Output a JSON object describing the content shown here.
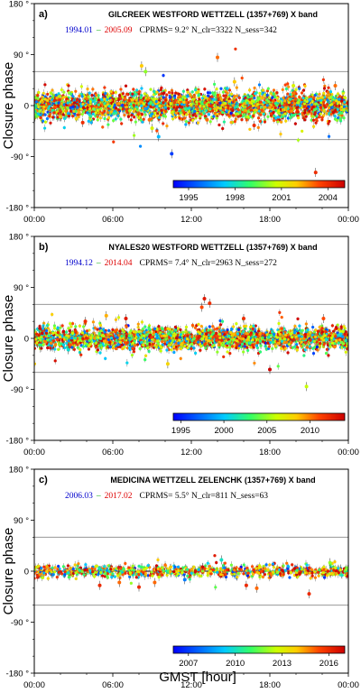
{
  "xlabel": "GMST [hour]",
  "chart_data": [
    {
      "type": "scatter",
      "panel_label": "a)",
      "title": "GILCREEK WESTFORD WETTZELL (1357+769) X band",
      "date_start": "1994.01",
      "dash": "–",
      "date_end": "2005.09",
      "stats": "CPRMS=  9.2°    N_clr=3322    N_sess=342",
      "ylabel": "Closure phase",
      "xlim": [
        0,
        24
      ],
      "ylim": [
        -180,
        180
      ],
      "x_ticks": [
        "00:00",
        "06:00",
        "12:00",
        "18:00",
        "00:00"
      ],
      "y_ticks": [
        "180 °",
        "90 °",
        "0",
        "-90 °",
        "-180 °"
      ],
      "reference_lines": [
        60,
        -60
      ],
      "colorbar": {
        "range": [
          1994.01,
          2005.09
        ],
        "ticks": [
          1995,
          1998,
          2001,
          2004
        ]
      },
      "noise_spread": 12,
      "n_points": 2600,
      "outliers": [
        [
          8.2,
          70,
          2002
        ],
        [
          8.5,
          60,
          2000
        ],
        [
          8.8,
          -25,
          2003
        ],
        [
          9.0,
          -40,
          2001
        ],
        [
          9.5,
          -55,
          1997
        ],
        [
          10.5,
          -85,
          1995
        ],
        [
          14.0,
          85,
          2003
        ],
        [
          15.3,
          42,
          2002
        ],
        [
          16.8,
          -35,
          2004
        ],
        [
          21.5,
          -118,
          2004
        ],
        [
          23.0,
          35,
          2003
        ],
        [
          19.8,
          35,
          2001
        ],
        [
          3.7,
          -30,
          2004
        ],
        [
          2.0,
          -20,
          2002
        ],
        [
          13.2,
          -25,
          2003
        ]
      ]
    },
    {
      "type": "scatter",
      "panel_label": "b)",
      "title": "NYALES20 WESTFORD WETTZELL (1357+769) X band",
      "date_start": "1994.12",
      "dash": "–",
      "date_end": "2014.04",
      "stats": "CPRMS=  7.4°    N_clr=2963    N_sess=272",
      "ylabel": "Closure phase",
      "xlim": [
        0,
        24
      ],
      "ylim": [
        -180,
        180
      ],
      "x_ticks": [
        "00:00",
        "06:00",
        "12:00",
        "18:00",
        "00:00"
      ],
      "y_ticks": [
        "180 °",
        "90 °",
        "0",
        "-90 °",
        "-180 °"
      ],
      "reference_lines": [
        60,
        -60
      ],
      "colorbar": {
        "range": [
          1994.12,
          2014.04
        ],
        "ticks": [
          1995,
          2000,
          2005,
          2010
        ]
      },
      "noise_spread": 9,
      "n_points": 2400,
      "outliers": [
        [
          13.0,
          70,
          2013
        ],
        [
          13.4,
          62,
          2012
        ],
        [
          12.8,
          55,
          2011
        ],
        [
          5.5,
          40,
          2009
        ],
        [
          7.0,
          35,
          2013
        ],
        [
          18.0,
          -55,
          2014
        ],
        [
          20.8,
          -85,
          2006
        ],
        [
          10.2,
          -45,
          2008
        ],
        [
          3.9,
          30,
          2012
        ],
        [
          22.1,
          35,
          2011
        ],
        [
          16.0,
          35,
          2012
        ],
        [
          2.6,
          -20,
          2001
        ]
      ]
    },
    {
      "type": "scatter",
      "panel_label": "c)",
      "title": "MEDICINA WETTZELL ZELENCHK (1357+769) X band",
      "date_start": "2006.03",
      "dash": "–",
      "date_end": "2017.02",
      "stats": "CPRMS=  5.5°    N_clr=811    N_sess=63",
      "ylabel": "Closure phase",
      "xlim": [
        0,
        24
      ],
      "ylim": [
        -180,
        180
      ],
      "x_ticks": [
        "00:00",
        "06:00",
        "12:00",
        "18:00",
        "00:00"
      ],
      "y_ticks": [
        "180 °",
        "90 °",
        "0",
        "-90 °",
        "-180 °"
      ],
      "reference_lines": [
        60,
        -60
      ],
      "colorbar": {
        "range": [
          2006.03,
          2017.02
        ],
        "ticks": [
          2007,
          2010,
          2013,
          2016
        ]
      },
      "noise_spread": 5,
      "n_points": 800,
      "outliers": [
        [
          5.0,
          -25,
          2016
        ],
        [
          6.5,
          -20,
          2015
        ],
        [
          8.0,
          -28,
          2016
        ],
        [
          9.2,
          -20,
          2015
        ],
        [
          14.3,
          20,
          2010
        ],
        [
          16.2,
          -25,
          2016
        ],
        [
          17.0,
          -30,
          2015
        ],
        [
          21.0,
          -40,
          2016
        ],
        [
          22.6,
          15,
          2012
        ],
        [
          11.5,
          -15,
          2008
        ]
      ]
    }
  ]
}
